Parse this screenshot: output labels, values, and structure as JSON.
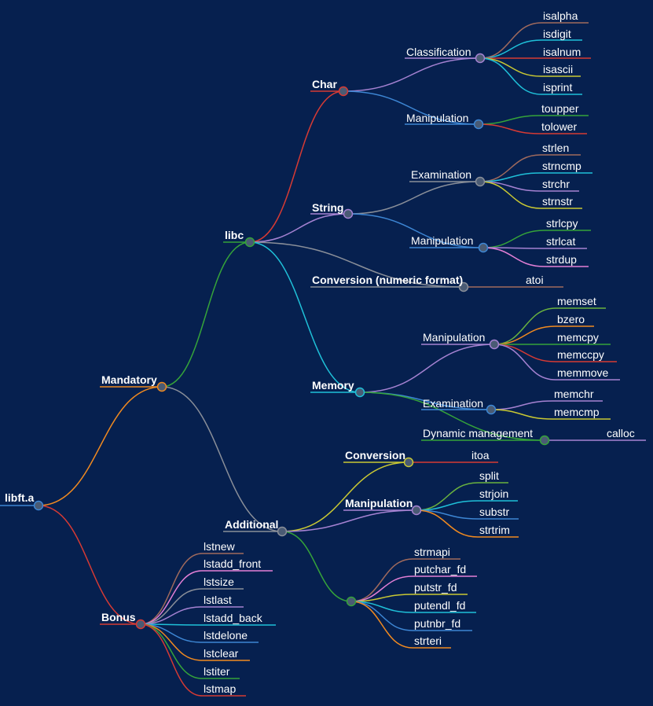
{
  "diagram": {
    "type": "mindmap",
    "root": "libft.a",
    "colors": {
      "background": "#06204f",
      "orange": "#f18a20",
      "red": "#d63a34",
      "green": "#35a33a",
      "gray": "#8a8f99",
      "cyan": "#1fc0d8",
      "purple": "#a582d2",
      "blue": "#3d86d4",
      "yellow": "#c9c833",
      "pink": "#e37fd6",
      "brown": "#a06a5d",
      "lime": "#6ab23f"
    },
    "labels": {
      "root": "libft.a",
      "mandatory": "Mandatory",
      "bonus": "Bonus",
      "libc": "libc",
      "additional": "Additional",
      "char": "Char",
      "string": "String",
      "conversion_numeric": "Conversion (numeric format)",
      "memory": "Memory",
      "char_classification": "Classification",
      "char_manipulation": "Manipulation",
      "isalpha": "isalpha",
      "isdigit": "isdigit",
      "isalnum": "isalnum",
      "isascii": "isascii",
      "isprint": "isprint",
      "toupper": "toupper",
      "tolower": "tolower",
      "string_examination": "Examination",
      "string_manipulation": "Manipulation",
      "strlen": "strlen",
      "strncmp": "strncmp",
      "strchr": "strchr",
      "strnstr": "strnstr",
      "strlcpy": "strlcpy",
      "strlcat": "strlcat",
      "strdup": "strdup",
      "atoi": "atoi",
      "memory_manipulation": "Manipulation",
      "memory_examination": "Examination",
      "dynamic_management": "Dynamic management",
      "memset": "memset",
      "bzero": "bzero",
      "memcpy": "memcpy",
      "memccpy": "memccpy",
      "memmove": "memmove",
      "memchr": "memchr",
      "memcmp": "memcmp",
      "calloc": "calloc",
      "additional_conversion": "Conversion",
      "additional_manipulation": "Manipulation",
      "itoa": "itoa",
      "split": "split",
      "strjoin": "strjoin",
      "substr": "substr",
      "strtrim": "strtrim",
      "strmapi": "strmapi",
      "putchar_fd": "putchar_fd",
      "putstr_fd": "putstr_fd",
      "putendl_fd": "putendl_fd",
      "putnbr_fd": "putnbr_fd",
      "strteri": "strteri",
      "lstnew": "lstnew",
      "lstadd_front": "lstadd_front",
      "lstsize": "lstsize",
      "lstlast": "lstlast",
      "lstadd_back": "lstadd_back",
      "lstdelone": "lstdelone",
      "lstclear": "lstclear",
      "lstiter": "lstiter",
      "lstmap": "lstmap"
    }
  }
}
